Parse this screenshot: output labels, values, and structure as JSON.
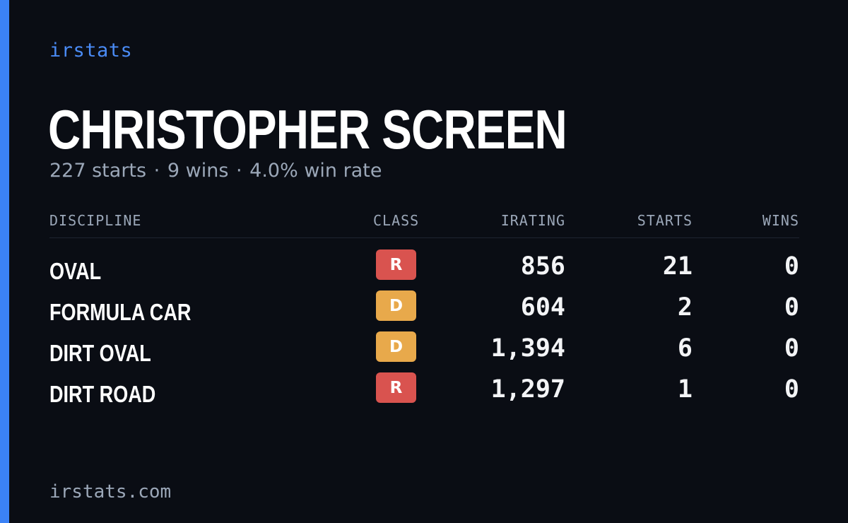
{
  "brand": "irstats",
  "driver": {
    "name": "CHRISTOPHER SCREEN",
    "starts_text": "227 starts",
    "wins_text": "9 wins",
    "win_rate_text": "4.0% win rate",
    "separator": "·"
  },
  "table": {
    "headers": {
      "discipline": "DISCIPLINE",
      "class": "CLASS",
      "irating": "IRATING",
      "starts": "STARTS",
      "wins": "WINS"
    },
    "rows": [
      {
        "discipline": "OVAL",
        "class": "R",
        "irating": "856",
        "starts": "21",
        "wins": "0"
      },
      {
        "discipline": "FORMULA CAR",
        "class": "D",
        "irating": "604",
        "starts": "2",
        "wins": "0"
      },
      {
        "discipline": "DIRT OVAL",
        "class": "D",
        "irating": "1,394",
        "starts": "6",
        "wins": "0"
      },
      {
        "discipline": "DIRT ROAD",
        "class": "R",
        "irating": "1,297",
        "starts": "1",
        "wins": "0"
      }
    ]
  },
  "class_colors": {
    "R": "#d9534f",
    "D": "#e8a94b"
  },
  "accent_color": "#3b82f6",
  "footer": "irstats.com"
}
